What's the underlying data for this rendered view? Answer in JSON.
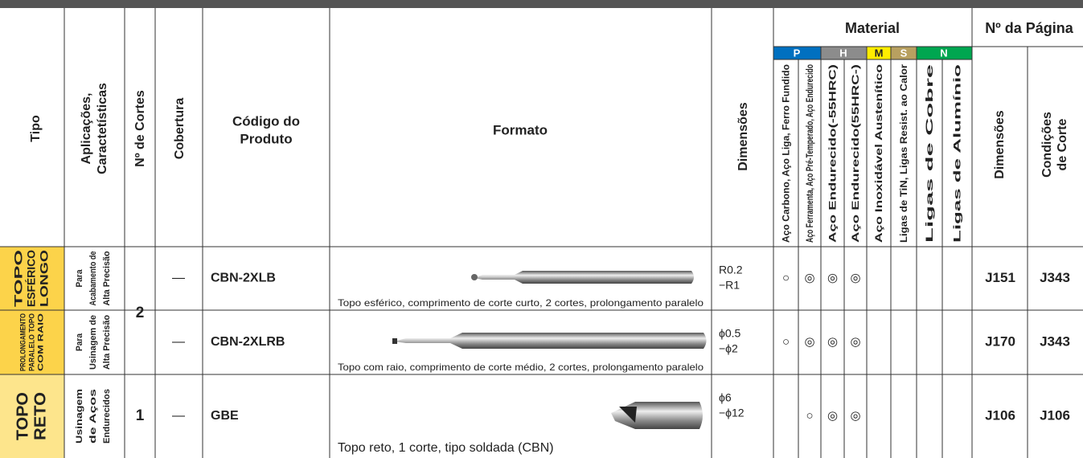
{
  "header": {
    "tipo": "Tipo",
    "aplicacoes": [
      "Aplicações,",
      "Caractetísticas"
    ],
    "cortes": "Nº de Cortes",
    "cobertura": "Cobertura",
    "codigo": [
      "Código do",
      "Produto"
    ],
    "formato": "Formato",
    "dimensoes": "Dimensões",
    "material": "Material",
    "pagina": "Nº da Página",
    "groups": [
      "P",
      "H",
      "M",
      "S",
      "N"
    ],
    "materials": [
      "Aço Carbono, Aço Liga, Ferro Fundido",
      "Aço Ferramenta, Aço Pré-Temperado, Aço Endurecido",
      "Aço Endurecido(-55HRC)",
      "Aço Endurecido(55HRC-)",
      "Aço Inoxidável Austenítico",
      "Ligas de TiN, Ligas Resist. ao Calor",
      "Ligas de Cobre",
      "Ligas de Alumínio"
    ],
    "page_dimensoes": "Dimensões",
    "page_condicoes": [
      "Condições",
      "de Corte"
    ]
  },
  "rows": [
    {
      "tipo": [
        "TOPO",
        "ESFÉRICO",
        "LONGO"
      ],
      "aplicacoes": [
        "Para",
        "Acabamento de",
        "Alta Precisão"
      ],
      "cobertura": "—",
      "codigo": "CBN-2XLB",
      "formato": "Topo esférico, comprimento de corte curto, 2 cortes, prolongamento paralelo",
      "dimensoes": [
        "R0.2",
        "−R1"
      ],
      "materials": [
        "○",
        "◎",
        "◎",
        "◎",
        null,
        null,
        null,
        null
      ],
      "pages": [
        "J151",
        "J343"
      ]
    },
    {
      "tipo": [
        "PROLONGAMENTO",
        "PARALELO TOPO",
        "COM RAIO"
      ],
      "aplicacoes": [
        "Para",
        "Usinagem de",
        "Alta Precisão"
      ],
      "cobertura": "—",
      "codigo": "CBN-2XLRB",
      "formato": "Topo com raio, comprimento de corte médio, 2 cortes, prolongamento paralelo",
      "dimensoes": [
        "ϕ0.5",
        "−ϕ2"
      ],
      "materials": [
        "○",
        "◎",
        "◎",
        "◎",
        null,
        null,
        null,
        null
      ],
      "pages": [
        "J170",
        "J343"
      ]
    },
    {
      "tipo": [
        "TOPO",
        "RETO"
      ],
      "aplicacoes": [
        "Usinagem",
        "de Aços",
        "Endurecidos"
      ],
      "cobertura": "—",
      "codigo": "GBE",
      "formato": "Topo reto, 1 corte, tipo soldada (CBN)",
      "dimensoes": [
        "ϕ6",
        "−ϕ12"
      ],
      "materials": [
        null,
        "○",
        "◎",
        "◎",
        null,
        null,
        null,
        null
      ],
      "pages": [
        "J106",
        "J106"
      ]
    }
  ],
  "cortes": [
    "2",
    "1"
  ]
}
